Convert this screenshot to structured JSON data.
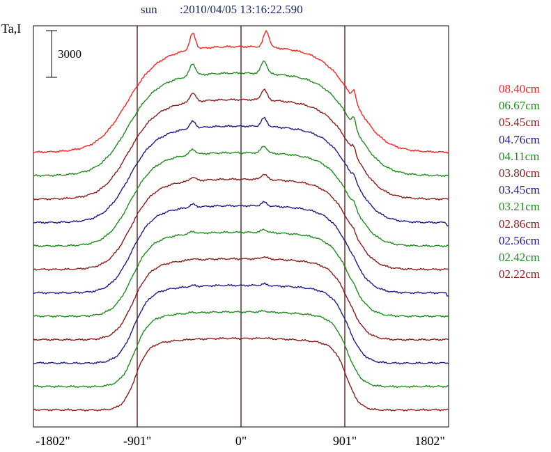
{
  "header": {
    "object": "sun",
    "timestamp": ":2010/04/05 13:16:22.590"
  },
  "chart_data": {
    "type": "line",
    "title": "sun    :2010/04/05 13:16:22.590",
    "ylabel": "Ta,I",
    "scale_bar_label": "3000",
    "xlim": [
      -1802,
      1802
    ],
    "x_ticks": [
      "-1802\"",
      "-901\"",
      "0\"",
      "901\"",
      "1802\""
    ],
    "x_tick_values": [
      -1802,
      -901,
      0,
      901,
      1802
    ],
    "vertical_lines_at": [
      -901,
      0,
      901
    ],
    "stacked_offset": true,
    "grid": false,
    "legend_position": "right",
    "series": [
      {
        "name": "08.40cm",
        "color": "#ff2020",
        "baseline_rank": 11,
        "edge_dip": false,
        "features": [
          {
            "x": -420,
            "h": 2100
          },
          {
            "x": 220,
            "h": 2100
          },
          {
            "x": 980,
            "h": 1400
          }
        ]
      },
      {
        "name": "06.67cm",
        "color": "#1f8a1f",
        "baseline_rank": 10,
        "edge_dip": false,
        "features": [
          {
            "x": -420,
            "h": 1600
          },
          {
            "x": 200,
            "h": 1700
          },
          {
            "x": 980,
            "h": 1200
          }
        ]
      },
      {
        "name": "05.45cm",
        "color": "#8b1a1a",
        "baseline_rank": 9,
        "edge_dip": false,
        "features": [
          {
            "x": -420,
            "h": 1200
          },
          {
            "x": 200,
            "h": 1400
          },
          {
            "x": 980,
            "h": 900
          }
        ]
      },
      {
        "name": "04.76cm",
        "color": "#1a1a8b",
        "baseline_rank": 8,
        "edge_dip": true,
        "features": [
          {
            "x": -420,
            "h": 900
          },
          {
            "x": 200,
            "h": 1100
          },
          {
            "x": 980,
            "h": 700
          }
        ]
      },
      {
        "name": "04.11cm",
        "color": "#1f8a1f",
        "baseline_rank": 7,
        "edge_dip": false,
        "features": [
          {
            "x": -420,
            "h": 700
          },
          {
            "x": 200,
            "h": 900
          },
          {
            "x": 980,
            "h": 500
          }
        ]
      },
      {
        "name": "03.80cm",
        "color": "#8b1a1a",
        "baseline_rank": 6,
        "edge_dip": false,
        "features": [
          {
            "x": -420,
            "h": 500
          },
          {
            "x": 200,
            "h": 700
          },
          {
            "x": 980,
            "h": 400
          }
        ]
      },
      {
        "name": "03.45cm",
        "color": "#1a1a8b",
        "baseline_rank": 5,
        "edge_dip": true,
        "features": [
          {
            "x": -420,
            "h": 400
          },
          {
            "x": 200,
            "h": 500
          },
          {
            "x": 980,
            "h": 300
          }
        ]
      },
      {
        "name": "03.21cm",
        "color": "#1f8a1f",
        "baseline_rank": 4,
        "edge_dip": false,
        "features": [
          {
            "x": -420,
            "h": 300
          },
          {
            "x": 200,
            "h": 400
          },
          {
            "x": 980,
            "h": 200
          }
        ]
      },
      {
        "name": "02.86cm",
        "color": "#8b1a1a",
        "baseline_rank": 3,
        "edge_dip": false,
        "features": [
          {
            "x": -420,
            "h": 200
          },
          {
            "x": 200,
            "h": 300
          },
          {
            "x": 980,
            "h": 100
          }
        ]
      },
      {
        "name": "02.56cm",
        "color": "#1a1a8b",
        "baseline_rank": 2,
        "edge_dip": false,
        "features": [
          {
            "x": -420,
            "h": 150
          },
          {
            "x": 200,
            "h": 200
          }
        ]
      },
      {
        "name": "02.42cm",
        "color": "#1f8a1f",
        "baseline_rank": 1,
        "edge_dip": false,
        "features": [
          {
            "x": -420,
            "h": 100
          },
          {
            "x": 200,
            "h": 150
          }
        ]
      },
      {
        "name": "02.22cm",
        "color": "#8b1a1a",
        "baseline_rank": 0,
        "edge_dip": false,
        "features": [
          {
            "x": -420,
            "h": 50
          },
          {
            "x": 200,
            "h": 80
          }
        ]
      }
    ],
    "legend": [
      {
        "label": "08.40cm",
        "color": "#ff2020"
      },
      {
        "label": "06.67cm",
        "color": "#1f8a1f"
      },
      {
        "label": "05.45cm",
        "color": "#8b1a1a"
      },
      {
        "label": "04.76cm",
        "color": "#1a1a8b"
      },
      {
        "label": "04.11cm",
        "color": "#1f8a1f"
      },
      {
        "label": "03.80cm",
        "color": "#8b1a1a"
      },
      {
        "label": "03.45cm",
        "color": "#1a1a8b"
      },
      {
        "label": "03.21cm",
        "color": "#1f8a1f"
      },
      {
        "label": "02.86cm",
        "color": "#8b1a1a"
      },
      {
        "label": "02.56cm",
        "color": "#1a1a8b"
      },
      {
        "label": "02.42cm",
        "color": "#1f8a1f"
      },
      {
        "label": "02.22cm",
        "color": "#8b1a1a"
      }
    ]
  }
}
